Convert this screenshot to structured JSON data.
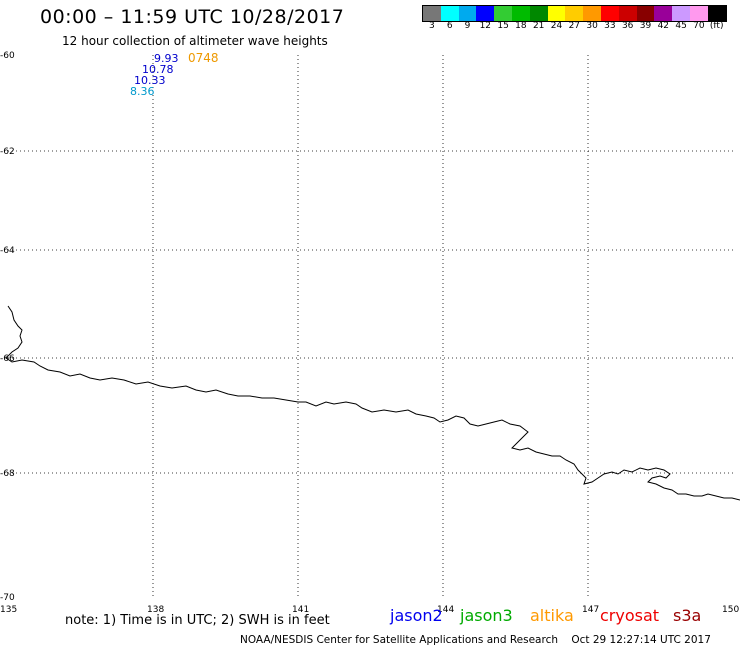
{
  "header": {
    "title": "00:00 – 11:59 UTC 10/28/2017",
    "subtitle": "12 hour collection of altimeter wave heights"
  },
  "legend": {
    "colors": [
      "#777777",
      "#00ffff",
      "#00aaee",
      "#0000ff",
      "#33cc33",
      "#00bb00",
      "#008800",
      "#ffff00",
      "#ffcc00",
      "#ff9900",
      "#ff0000",
      "#cc0000",
      "#880000",
      "#990099",
      "#cc99ff",
      "#ff99ee",
      "#000000"
    ],
    "labels": [
      "3",
      "6",
      "9",
      "12",
      "15",
      "18",
      "21",
      "24",
      "27",
      "30",
      "33",
      "36",
      "39",
      "42",
      "45",
      "70",
      "(ft)"
    ]
  },
  "axes": {
    "lat_labels": [
      "-60",
      "-62",
      "-64",
      "-66",
      "-68",
      "-70"
    ],
    "lon_labels": [
      "135",
      "138",
      "141",
      "144",
      "147",
      "150"
    ]
  },
  "observations": {
    "time_label": "0748",
    "time_color": "#ee9900",
    "waves": [
      {
        "value": "9.93",
        "color": "#0000cc"
      },
      {
        "value": "10.78",
        "color": "#0000cc"
      },
      {
        "value": "10.33",
        "color": "#0000cc"
      },
      {
        "value": "8.36",
        "color": "#0099cc"
      }
    ]
  },
  "footer": {
    "note": "note: 1) Time is in UTC; 2) SWH is in feet",
    "satellites": [
      {
        "name": "jason2",
        "color": "#0000ee"
      },
      {
        "name": "jason3",
        "color": "#00aa00"
      },
      {
        "name": "altika",
        "color": "#ff9900"
      },
      {
        "name": "cryosat",
        "color": "#ee0000"
      },
      {
        "name": "s3a",
        "color": "#990000"
      }
    ],
    "credit": "NOAA/NESDIS Center for Satellite Applications and Research    Oct 29 12:27:14 UTC 2017"
  }
}
